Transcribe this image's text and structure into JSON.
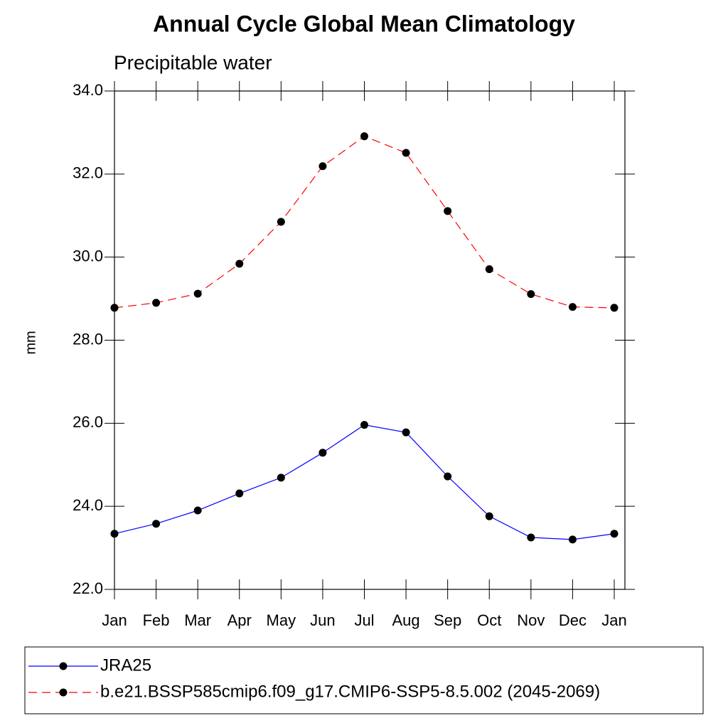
{
  "chart_data": {
    "type": "line",
    "title": "Annual Cycle Global Mean Climatology",
    "subtitle": "Precipitable water",
    "y_label": "mm",
    "categories": [
      "Jan",
      "Feb",
      "Mar",
      "Apr",
      "May",
      "Jun",
      "Jul",
      "Aug",
      "Sep",
      "Oct",
      "Nov",
      "Dec",
      "Jan"
    ],
    "series": [
      {
        "name": "JRA25",
        "color": "#0000ff",
        "line_style": "solid",
        "values": [
          23.34,
          23.58,
          23.9,
          24.31,
          24.69,
          25.29,
          25.96,
          25.78,
          24.72,
          23.76,
          23.25,
          23.2,
          23.34
        ]
      },
      {
        "name": "b.e21.BSSP585cmip6.f09_g17.CMIP6-SSP5-8.5.002 (2045-2069)",
        "color": "#ff0000",
        "line_style": "dashed",
        "values": [
          28.78,
          28.9,
          29.12,
          29.84,
          30.85,
          32.19,
          32.91,
          32.51,
          31.11,
          29.71,
          29.11,
          28.8,
          28.78
        ]
      }
    ],
    "marker_color": "#000000",
    "ylim": [
      22,
      34
    ],
    "yticks": [
      {
        "value": 22,
        "label": "22.0"
      },
      {
        "value": 24,
        "label": "24.0"
      },
      {
        "value": 26,
        "label": "26.0"
      },
      {
        "value": 28,
        "label": "28.0"
      },
      {
        "value": 30,
        "label": "30.0"
      },
      {
        "value": 32,
        "label": "32.0"
      },
      {
        "value": 34,
        "label": "34.0"
      }
    ],
    "grid": false,
    "legend": "bottom"
  }
}
